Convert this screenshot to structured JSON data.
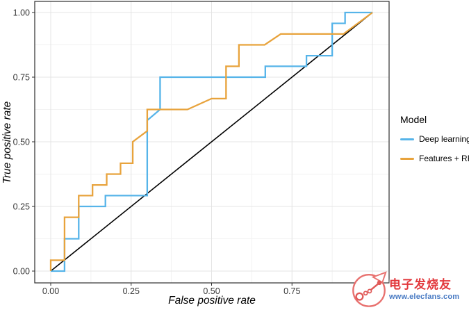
{
  "chart_data": {
    "type": "line",
    "subtype": "roc-step-curves",
    "title": "",
    "xlabel": "False positive rate",
    "ylabel": "True positive rate",
    "xlim": [
      0,
      1
    ],
    "ylim": [
      0,
      1
    ],
    "grid": "on",
    "x_tick_values": [
      0,
      0.25,
      0.5,
      0.75
    ],
    "x_tick_labels": [
      "0.00",
      "0.25",
      "0.50",
      "0.75"
    ],
    "y_tick_values": [
      0,
      0.25,
      0.5,
      0.75,
      1
    ],
    "y_tick_labels": [
      "0.00",
      "0.25",
      "0.50",
      "0.75",
      "1.00"
    ],
    "grid_major_values": [
      0,
      0.25,
      0.5,
      0.75,
      1
    ],
    "grid_minor_values": [
      0.125,
      0.375,
      0.625,
      0.875
    ],
    "legend_position": "right",
    "legend_title": "Model",
    "series": [
      {
        "name": "Deep learning",
        "color": "#56B4E9",
        "points": [
          [
            0,
            0
          ],
          [
            0.043,
            0
          ],
          [
            0.043,
            0.125
          ],
          [
            0.087,
            0.125
          ],
          [
            0.087,
            0.25
          ],
          [
            0.17,
            0.25
          ],
          [
            0.17,
            0.292
          ],
          [
            0.3,
            0.292
          ],
          [
            0.3,
            0.583
          ],
          [
            0.34,
            0.625
          ],
          [
            0.34,
            0.75
          ],
          [
            0.667,
            0.75
          ],
          [
            0.667,
            0.792
          ],
          [
            0.795,
            0.792
          ],
          [
            0.795,
            0.833
          ],
          [
            0.875,
            0.833
          ],
          [
            0.875,
            0.958
          ],
          [
            0.915,
            0.958
          ],
          [
            0.915,
            1
          ],
          [
            1,
            1
          ]
        ]
      },
      {
        "name": "Features + RF",
        "color": "#E8A33C",
        "points": [
          [
            0,
            0
          ],
          [
            0,
            0.042
          ],
          [
            0.043,
            0.042
          ],
          [
            0.043,
            0.208
          ],
          [
            0.087,
            0.208
          ],
          [
            0.087,
            0.292
          ],
          [
            0.13,
            0.292
          ],
          [
            0.13,
            0.333
          ],
          [
            0.174,
            0.333
          ],
          [
            0.174,
            0.375
          ],
          [
            0.217,
            0.375
          ],
          [
            0.217,
            0.417
          ],
          [
            0.255,
            0.417
          ],
          [
            0.255,
            0.5
          ],
          [
            0.3,
            0.542
          ],
          [
            0.3,
            0.625
          ],
          [
            0.425,
            0.625
          ],
          [
            0.5,
            0.667
          ],
          [
            0.545,
            0.667
          ],
          [
            0.545,
            0.792
          ],
          [
            0.585,
            0.792
          ],
          [
            0.585,
            0.875
          ],
          [
            0.665,
            0.875
          ],
          [
            0.715,
            0.917
          ],
          [
            0.91,
            0.917
          ],
          [
            1,
            1
          ]
        ]
      }
    ],
    "reference_line": {
      "name": "chance-diagonal",
      "color": "#000000",
      "points": [
        [
          0,
          0
        ],
        [
          1,
          1
        ]
      ]
    }
  },
  "watermark": {
    "brand": "电子发烧友",
    "url": "www.elecfans.com",
    "brand_color": "#e2373b",
    "url_color": "#4b7cc4"
  }
}
